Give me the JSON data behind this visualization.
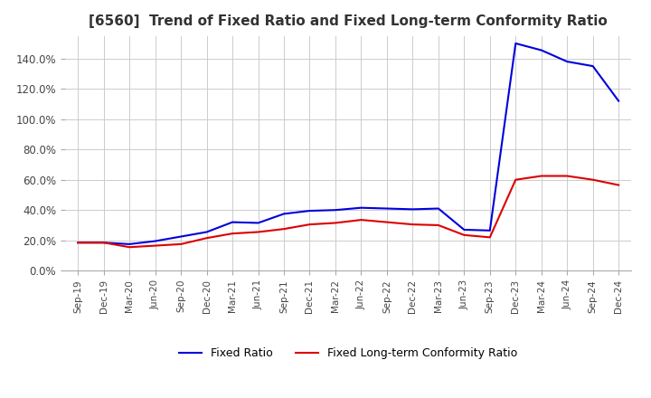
{
  "title": "[6560]  Trend of Fixed Ratio and Fixed Long-term Conformity Ratio",
  "x_labels": [
    "Sep-19",
    "Dec-19",
    "Mar-20",
    "Jun-20",
    "Sep-20",
    "Dec-20",
    "Mar-21",
    "Jun-21",
    "Sep-21",
    "Dec-21",
    "Mar-22",
    "Jun-22",
    "Sep-22",
    "Dec-22",
    "Mar-23",
    "Jun-23",
    "Sep-23",
    "Dec-23",
    "Mar-24",
    "Jun-24",
    "Sep-24",
    "Dec-24"
  ],
  "fixed_ratio": [
    0.185,
    0.185,
    0.175,
    0.195,
    0.225,
    0.255,
    0.32,
    0.315,
    0.375,
    0.395,
    0.4,
    0.415,
    0.41,
    0.405,
    0.41,
    0.27,
    0.265,
    1.5,
    1.455,
    1.38,
    1.35,
    1.12
  ],
  "fixed_lt_ratio": [
    0.185,
    0.185,
    0.155,
    0.165,
    0.175,
    0.215,
    0.245,
    0.255,
    0.275,
    0.305,
    0.315,
    0.335,
    0.32,
    0.305,
    0.3,
    0.235,
    0.22,
    0.6,
    0.625,
    0.625,
    0.6,
    0.565
  ],
  "fixed_ratio_color": "#0000dd",
  "fixed_lt_ratio_color": "#dd0000",
  "ylim": [
    0.0,
    1.55
  ],
  "yticks": [
    0.0,
    0.2,
    0.4,
    0.6,
    0.8,
    1.0,
    1.2,
    1.4
  ],
  "background_color": "#ffffff",
  "grid_color": "#cccccc",
  "title_fontsize": 11,
  "legend_fixed_ratio": "Fixed Ratio",
  "legend_fixed_lt_ratio": "Fixed Long-term Conformity Ratio"
}
